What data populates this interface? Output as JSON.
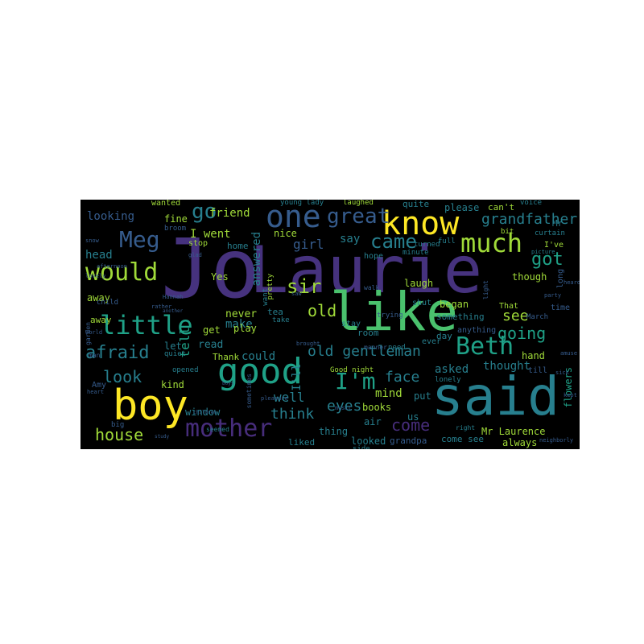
{
  "wordcloud": {
    "background": "#000000",
    "palette": {
      "indigo": "#46327e",
      "purple": "#472d7b",
      "blue": "#365c8d",
      "teal": "#277f8e",
      "green": "#1fa187",
      "lime": "#4ac16d",
      "yellowgreen": "#a0da39",
      "yellow": "#fde725"
    },
    "words": [
      {
        "text": "Jo"
      },
      {
        "text": "Laurie"
      },
      {
        "text": "said"
      },
      {
        "text": "like"
      },
      {
        "text": "boy"
      },
      {
        "text": "good"
      },
      {
        "text": "know"
      },
      {
        "text": "one"
      },
      {
        "text": "much"
      },
      {
        "text": "little"
      },
      {
        "text": "Meg"
      },
      {
        "text": "would"
      },
      {
        "text": "mother"
      },
      {
        "text": "Beth"
      },
      {
        "text": "I'm"
      },
      {
        "text": "great"
      },
      {
        "text": "came"
      },
      {
        "text": "go"
      },
      {
        "text": "sir"
      },
      {
        "text": "got"
      },
      {
        "text": "afraid"
      },
      {
        "text": "old gentleman"
      },
      {
        "text": "old"
      },
      {
        "text": "going"
      },
      {
        "text": "grandfather"
      },
      {
        "text": "house"
      },
      {
        "text": "see"
      },
      {
        "text": "look"
      },
      {
        "text": "eyes"
      },
      {
        "text": "come"
      },
      {
        "text": "face"
      },
      {
        "text": "think"
      },
      {
        "text": "girl"
      },
      {
        "text": "well"
      },
      {
        "text": "looking"
      },
      {
        "text": "head"
      },
      {
        "text": "friend"
      },
      {
        "text": "I went"
      },
      {
        "text": "fine"
      },
      {
        "text": "tell"
      },
      {
        "text": "answered"
      },
      {
        "text": "nice"
      },
      {
        "text": "say"
      },
      {
        "text": "wanted"
      },
      {
        "text": "quite"
      },
      {
        "text": "please"
      },
      {
        "text": "can't"
      },
      {
        "text": "Mr"
      },
      {
        "text": "young lady"
      },
      {
        "text": "laughed"
      },
      {
        "text": "voice"
      },
      {
        "text": "Yes"
      },
      {
        "text": "laugh"
      },
      {
        "text": "began"
      },
      {
        "text": "something"
      },
      {
        "text": "though"
      },
      {
        "text": "away"
      },
      {
        "text": "never"
      },
      {
        "text": "make"
      },
      {
        "text": "read"
      },
      {
        "text": "play"
      },
      {
        "text": "could"
      },
      {
        "text": "Thank"
      },
      {
        "text": "get"
      },
      {
        "text": "let"
      },
      {
        "text": "kind"
      },
      {
        "text": "window"
      },
      {
        "text": "asked"
      },
      {
        "text": "thought"
      },
      {
        "text": "hand"
      },
      {
        "text": "mind"
      },
      {
        "text": "put"
      },
      {
        "text": "books"
      },
      {
        "text": "air"
      },
      {
        "text": "Mr Laurence"
      },
      {
        "text": "thing"
      },
      {
        "text": "looked"
      },
      {
        "text": "liked"
      },
      {
        "text": "grandpa"
      },
      {
        "text": "come see"
      },
      {
        "text": "always"
      },
      {
        "text": "flowers"
      },
      {
        "text": "anything"
      },
      {
        "text": "I'll"
      },
      {
        "text": "That"
      },
      {
        "text": "time"
      },
      {
        "text": "home"
      },
      {
        "text": "day"
      },
      {
        "text": "room"
      },
      {
        "text": "us"
      },
      {
        "text": "ever"
      },
      {
        "text": "Good night"
      },
      {
        "text": "hope"
      },
      {
        "text": "stay"
      },
      {
        "text": "tea"
      },
      {
        "text": "away"
      },
      {
        "text": "Amy"
      },
      {
        "text": "I've"
      },
      {
        "text": "long"
      },
      {
        "text": "till"
      },
      {
        "text": "lonely"
      },
      {
        "text": "need"
      },
      {
        "text": "side"
      },
      {
        "text": "full"
      },
      {
        "text": "shut"
      },
      {
        "text": "stop"
      },
      {
        "text": "pretty"
      },
      {
        "text": "bit"
      },
      {
        "text": "curtain"
      },
      {
        "text": "minute"
      },
      {
        "text": "turned"
      },
      {
        "text": "trying"
      },
      {
        "text": "want"
      },
      {
        "text": "March"
      },
      {
        "text": "opened"
      },
      {
        "text": "quiet"
      },
      {
        "text": "child"
      },
      {
        "text": "broom"
      },
      {
        "text": "take"
      },
      {
        "text": "man"
      },
      {
        "text": "big"
      },
      {
        "text": "right"
      },
      {
        "text": "seemed"
      },
      {
        "text": "manner"
      },
      {
        "text": "garden"
      },
      {
        "text": "party"
      },
      {
        "text": "music"
      },
      {
        "text": "picture"
      },
      {
        "text": "sometimes"
      },
      {
        "text": "walk"
      },
      {
        "text": "light"
      },
      {
        "text": "brought"
      },
      {
        "text": "Hannah"
      },
      {
        "text": "snow"
      },
      {
        "text": "lovely"
      },
      {
        "text": "afternoon"
      },
      {
        "text": "world"
      },
      {
        "text": "rather"
      },
      {
        "text": "saw"
      },
      {
        "text": "heard"
      },
      {
        "text": "glad"
      },
      {
        "text": "amuse"
      },
      {
        "text": "neighborly"
      },
      {
        "text": "sick"
      },
      {
        "text": "pleasure"
      },
      {
        "text": "children"
      },
      {
        "text": "another"
      },
      {
        "text": "heart"
      },
      {
        "text": "kept"
      },
      {
        "text": "boys"
      },
      {
        "text": "study"
      }
    ]
  }
}
